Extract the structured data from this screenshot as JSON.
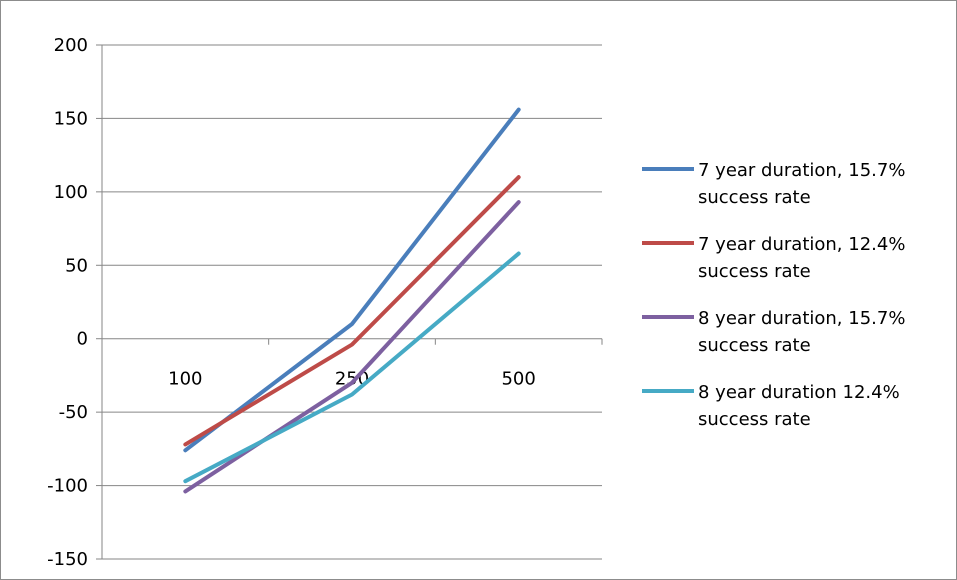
{
  "chart_data": {
    "type": "line",
    "title": "",
    "xlabel": "",
    "ylabel": "",
    "categories": [
      "100",
      "250",
      "500"
    ],
    "ylim": [
      -150,
      200
    ],
    "yticks": [
      "200",
      "150",
      "100",
      "50",
      "0",
      "-50",
      "-100",
      "-150"
    ],
    "grid": true,
    "legend_position": "right",
    "series": [
      {
        "name": "7 year duration, 15.7% success rate",
        "name_lines": [
          "7 year duration, 15.7%",
          "success rate"
        ],
        "color": "#4a7ebb",
        "values": [
          -76,
          10,
          156
        ]
      },
      {
        "name": "7 year duration, 12.4% success rate",
        "name_lines": [
          "7 year duration, 12.4%",
          "success rate"
        ],
        "color": "#be4b48",
        "values": [
          -72,
          -4,
          110
        ]
      },
      {
        "name": "8 year duration, 15.7% success rate",
        "name_lines": [
          "8 year duration, 15.7%",
          "success rate"
        ],
        "color": "#7d60a0",
        "values": [
          -104,
          -30,
          93
        ]
      },
      {
        "name": "8 year duration 12.4% success rate",
        "name_lines": [
          "8 year duration 12.4%",
          "success rate"
        ],
        "color": "#46aac5",
        "values": [
          -97,
          -38,
          58
        ]
      }
    ]
  }
}
